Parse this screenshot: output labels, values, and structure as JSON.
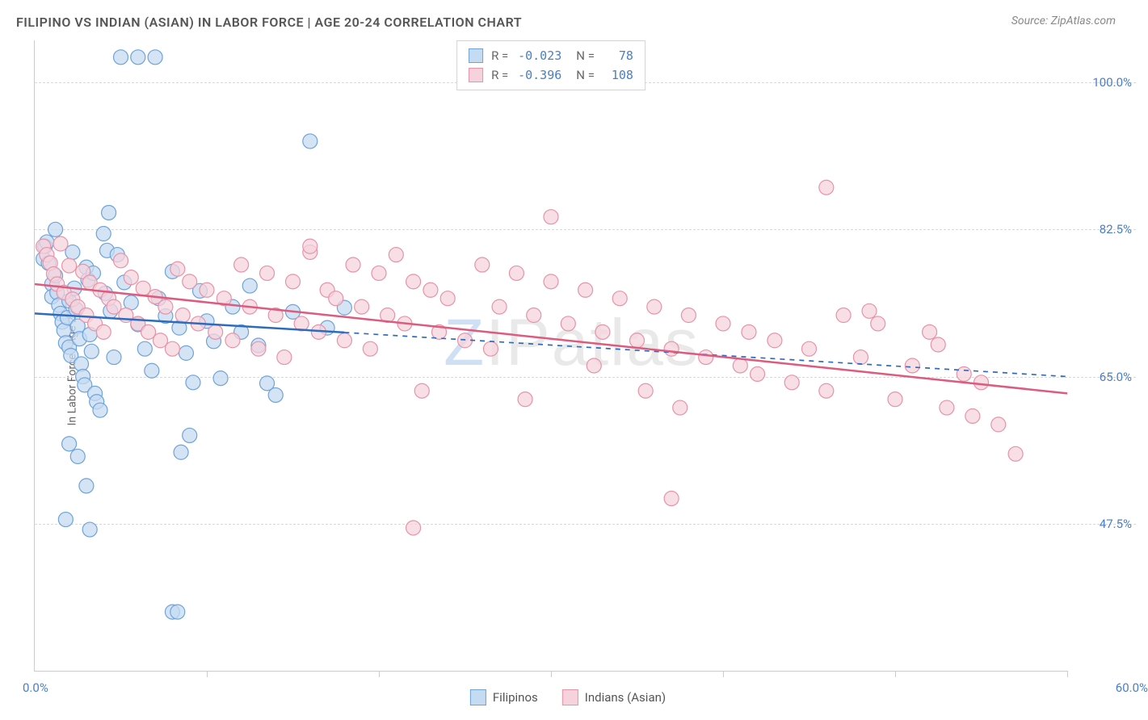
{
  "title": "FILIPINO VS INDIAN (ASIAN) IN LABOR FORCE | AGE 20-24 CORRELATION CHART",
  "source": "Source: ZipAtlas.com",
  "ylabel": "In Labor Force | Age 20-24",
  "watermark_z": "Z",
  "watermark_rest": "IPatlas",
  "chart": {
    "type": "scatter",
    "background_color": "#ffffff",
    "grid_color": "#d8d8d8",
    "axis_color": "#cccccc",
    "tick_label_color": "#4a7ec7",
    "xlim": [
      0,
      60
    ],
    "ylim": [
      30,
      105
    ],
    "x_ticks": [
      0,
      10,
      20,
      30,
      40,
      50,
      60
    ],
    "y_gridlines": [
      47.5,
      65.0,
      82.5,
      100.0
    ],
    "y_tick_labels": [
      "47.5%",
      "65.0%",
      "82.5%",
      "100.0%"
    ],
    "x_min_label": "0.0%",
    "x_max_label": "60.0%",
    "marker_radius": 9,
    "marker_stroke_width": 1.2,
    "line_width": 2.5,
    "series": [
      {
        "name": "Filipinos",
        "fill": "#c5dbf2",
        "stroke": "#6ea3db",
        "line_color": "#2f6bbd",
        "r": "-0.023",
        "n": "78",
        "trend": {
          "x1": 0,
          "y1": 72.5,
          "x2": 60,
          "y2": 65.0,
          "solid_until_x": 18
        },
        "points": [
          [
            0.5,
            79
          ],
          [
            0.6,
            80.5
          ],
          [
            0.7,
            81
          ],
          [
            0.8,
            78.5
          ],
          [
            1,
            76
          ],
          [
            1,
            74.5
          ],
          [
            1.2,
            77
          ],
          [
            1.3,
            75
          ],
          [
            1.4,
            73.5
          ],
          [
            1.5,
            72.5
          ],
          [
            1.6,
            71.5
          ],
          [
            1.7,
            70.5
          ],
          [
            1.8,
            69
          ],
          [
            1.9,
            72
          ],
          [
            2,
            74
          ],
          [
            2,
            68.5
          ],
          [
            2.1,
            67.5
          ],
          [
            2.3,
            75.5
          ],
          [
            2.4,
            73
          ],
          [
            2.5,
            71
          ],
          [
            2.6,
            69.5
          ],
          [
            2.7,
            66.5
          ],
          [
            2.8,
            65
          ],
          [
            2.9,
            64
          ],
          [
            3,
            78
          ],
          [
            3.1,
            76.5
          ],
          [
            3.2,
            70
          ],
          [
            3.3,
            68
          ],
          [
            3.5,
            63
          ],
          [
            3.6,
            62
          ],
          [
            3.8,
            61
          ],
          [
            4,
            82
          ],
          [
            4.2,
            80
          ],
          [
            4.4,
            72.8
          ],
          [
            4.6,
            67.3
          ],
          [
            2,
            57
          ],
          [
            2.5,
            55.5
          ],
          [
            3,
            52
          ],
          [
            1.8,
            48
          ],
          [
            3.2,
            46.8
          ],
          [
            5,
            103
          ],
          [
            6,
            103
          ],
          [
            7,
            103
          ],
          [
            4.3,
            84.5
          ],
          [
            4.8,
            79.5
          ],
          [
            5.2,
            76.2
          ],
          [
            5.6,
            73.8
          ],
          [
            6,
            71.2
          ],
          [
            6.4,
            68.3
          ],
          [
            6.8,
            65.7
          ],
          [
            7.2,
            74.3
          ],
          [
            7.6,
            72.2
          ],
          [
            8,
            77.5
          ],
          [
            8.4,
            70.8
          ],
          [
            8.8,
            67.8
          ],
          [
            9.2,
            64.3
          ],
          [
            9.6,
            75.2
          ],
          [
            10,
            71.6
          ],
          [
            10.4,
            69.2
          ],
          [
            10.8,
            64.8
          ],
          [
            9,
            58
          ],
          [
            8.5,
            56
          ],
          [
            8,
            37
          ],
          [
            8.3,
            37
          ],
          [
            11.5,
            73.3
          ],
          [
            12,
            70.3
          ],
          [
            12.5,
            75.8
          ],
          [
            13,
            68.7
          ],
          [
            13.5,
            64.2
          ],
          [
            15,
            72.7
          ],
          [
            14,
            62.8
          ],
          [
            16,
            93
          ],
          [
            17,
            70.8
          ],
          [
            18,
            73.2
          ],
          [
            1.2,
            82.5
          ],
          [
            2.2,
            79.8
          ],
          [
            3.4,
            77.3
          ],
          [
            4.1,
            74.9
          ]
        ]
      },
      {
        "name": "Indians (Asian)",
        "fill": "#f6d3dc",
        "stroke": "#e793a8",
        "line_color": "#dd5b7e",
        "r": "-0.396",
        "n": "108",
        "trend": {
          "x1": 0,
          "y1": 76.0,
          "x2": 60,
          "y2": 63.0,
          "solid_until_x": 60
        },
        "points": [
          [
            0.5,
            80.5
          ],
          [
            0.7,
            79.5
          ],
          [
            0.9,
            78.5
          ],
          [
            1.1,
            77.2
          ],
          [
            1.3,
            76
          ],
          [
            1.5,
            80.8
          ],
          [
            1.7,
            75
          ],
          [
            2,
            78.2
          ],
          [
            2.2,
            74.2
          ],
          [
            2.5,
            73.3
          ],
          [
            2.8,
            77.5
          ],
          [
            3,
            72.3
          ],
          [
            3.2,
            76.2
          ],
          [
            3.5,
            71.3
          ],
          [
            3.8,
            75.3
          ],
          [
            4,
            70.3
          ],
          [
            4.3,
            74.3
          ],
          [
            4.6,
            73.3
          ],
          [
            5,
            78.8
          ],
          [
            5.3,
            72.3
          ],
          [
            5.6,
            76.8
          ],
          [
            6,
            71.3
          ],
          [
            6.3,
            75.5
          ],
          [
            6.6,
            70.3
          ],
          [
            7,
            74.5
          ],
          [
            7.3,
            69.3
          ],
          [
            7.6,
            73.3
          ],
          [
            8,
            68.3
          ],
          [
            8.3,
            77.8
          ],
          [
            8.6,
            72.3
          ],
          [
            9,
            76.3
          ],
          [
            9.5,
            71.3
          ],
          [
            10,
            75.3
          ],
          [
            10.5,
            70.3
          ],
          [
            11,
            74.3
          ],
          [
            11.5,
            69.3
          ],
          [
            12,
            78.3
          ],
          [
            12.5,
            73.3
          ],
          [
            13,
            68.3
          ],
          [
            13.5,
            77.3
          ],
          [
            14,
            72.3
          ],
          [
            14.5,
            67.3
          ],
          [
            15,
            76.3
          ],
          [
            15.5,
            71.3
          ],
          [
            16,
            79.8
          ],
          [
            16.5,
            70.3
          ],
          [
            17,
            75.3
          ],
          [
            17.5,
            74.3
          ],
          [
            18,
            69.3
          ],
          [
            18.5,
            78.3
          ],
          [
            19,
            73.3
          ],
          [
            19.5,
            68.3
          ],
          [
            20,
            77.3
          ],
          [
            20.5,
            72.3
          ],
          [
            21,
            79.5
          ],
          [
            21.5,
            71.3
          ],
          [
            22,
            76.3
          ],
          [
            22.5,
            63.3
          ],
          [
            23,
            75.3
          ],
          [
            23.5,
            70.3
          ],
          [
            16,
            80.5
          ],
          [
            22,
            47
          ],
          [
            24,
            74.3
          ],
          [
            25,
            69.3
          ],
          [
            26,
            78.3
          ],
          [
            26.5,
            68.3
          ],
          [
            27,
            73.3
          ],
          [
            28,
            77.3
          ],
          [
            28.5,
            62.3
          ],
          [
            29,
            72.3
          ],
          [
            30,
            76.3
          ],
          [
            30,
            84
          ],
          [
            31,
            71.3
          ],
          [
            32,
            75.3
          ],
          [
            32.5,
            66.3
          ],
          [
            33,
            70.3
          ],
          [
            34,
            74.3
          ],
          [
            35,
            69.3
          ],
          [
            35.5,
            63.3
          ],
          [
            36,
            73.3
          ],
          [
            37,
            68.3
          ],
          [
            37.5,
            61.3
          ],
          [
            38,
            72.3
          ],
          [
            39,
            67.3
          ],
          [
            40,
            71.3
          ],
          [
            41,
            66.3
          ],
          [
            41.5,
            70.3
          ],
          [
            42,
            65.3
          ],
          [
            43,
            69.3
          ],
          [
            44,
            64.3
          ],
          [
            45,
            68.3
          ],
          [
            46,
            87.5
          ],
          [
            46,
            63.3
          ],
          [
            47,
            72.3
          ],
          [
            48,
            67.3
          ],
          [
            49,
            71.3
          ],
          [
            50,
            62.3
          ],
          [
            51,
            66.3
          ],
          [
            37,
            50.5
          ],
          [
            52,
            70.3
          ],
          [
            53,
            61.3
          ],
          [
            54,
            65.3
          ],
          [
            54.5,
            60.3
          ],
          [
            55,
            64.3
          ],
          [
            56,
            59.3
          ],
          [
            57,
            55.8
          ],
          [
            52.5,
            68.8
          ],
          [
            48.5,
            72.8
          ]
        ]
      }
    ]
  },
  "bottom_legend": [
    {
      "label": "Filipinos",
      "fill": "#c5dbf2",
      "stroke": "#6ea3db"
    },
    {
      "label": "Indians (Asian)",
      "fill": "#f6d3dc",
      "stroke": "#e793a8"
    }
  ]
}
